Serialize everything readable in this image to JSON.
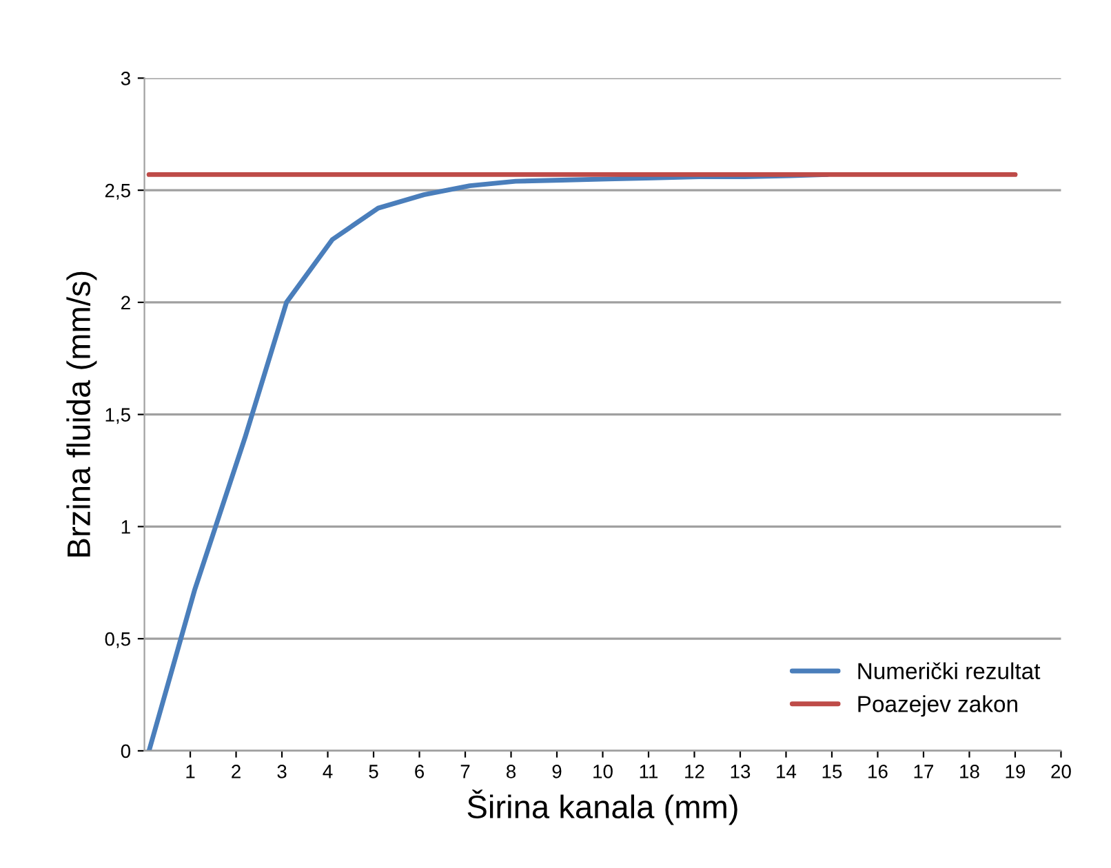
{
  "chart_data": {
    "type": "line",
    "xlabel": "Širina kanala (mm)",
    "ylabel": "Brzina fluida (mm/s)",
    "xlim": [
      0,
      20
    ],
    "xticks": [
      1,
      2,
      3,
      4,
      5,
      6,
      7,
      8,
      9,
      10,
      11,
      12,
      13,
      14,
      15,
      16,
      17,
      18,
      19,
      20
    ],
    "ylim": [
      0,
      3
    ],
    "yticks": [
      0,
      {
        "value": 0.5,
        "label": "0,5"
      },
      1,
      {
        "value": 1.5,
        "label": "1,5"
      },
      2,
      {
        "value": 2.5,
        "label": "2,5"
      },
      3
    ],
    "grid": "y",
    "legend": "bottom right",
    "marker": "none",
    "line_style": "solid",
    "series": [
      {
        "name": "Numerički rezultat",
        "color": "#4a7ebb",
        "x": [
          0.1,
          1.1,
          2.2,
          3.1,
          4.1,
          5.1,
          6.1,
          7.1,
          8.1,
          9.1,
          10.1,
          11.1,
          12.1,
          13.1,
          14.1,
          14.9
        ],
        "values": [
          0,
          0.72,
          1.4,
          2.0,
          2.28,
          2.42,
          2.48,
          2.52,
          2.54,
          2.545,
          2.55,
          2.555,
          2.56,
          2.56,
          2.565,
          2.57
        ]
      },
      {
        "name": "Poazejev zakon",
        "color": "#be4b48",
        "x": [
          0.1,
          19
        ],
        "values": [
          2.57,
          2.57
        ]
      }
    ]
  }
}
